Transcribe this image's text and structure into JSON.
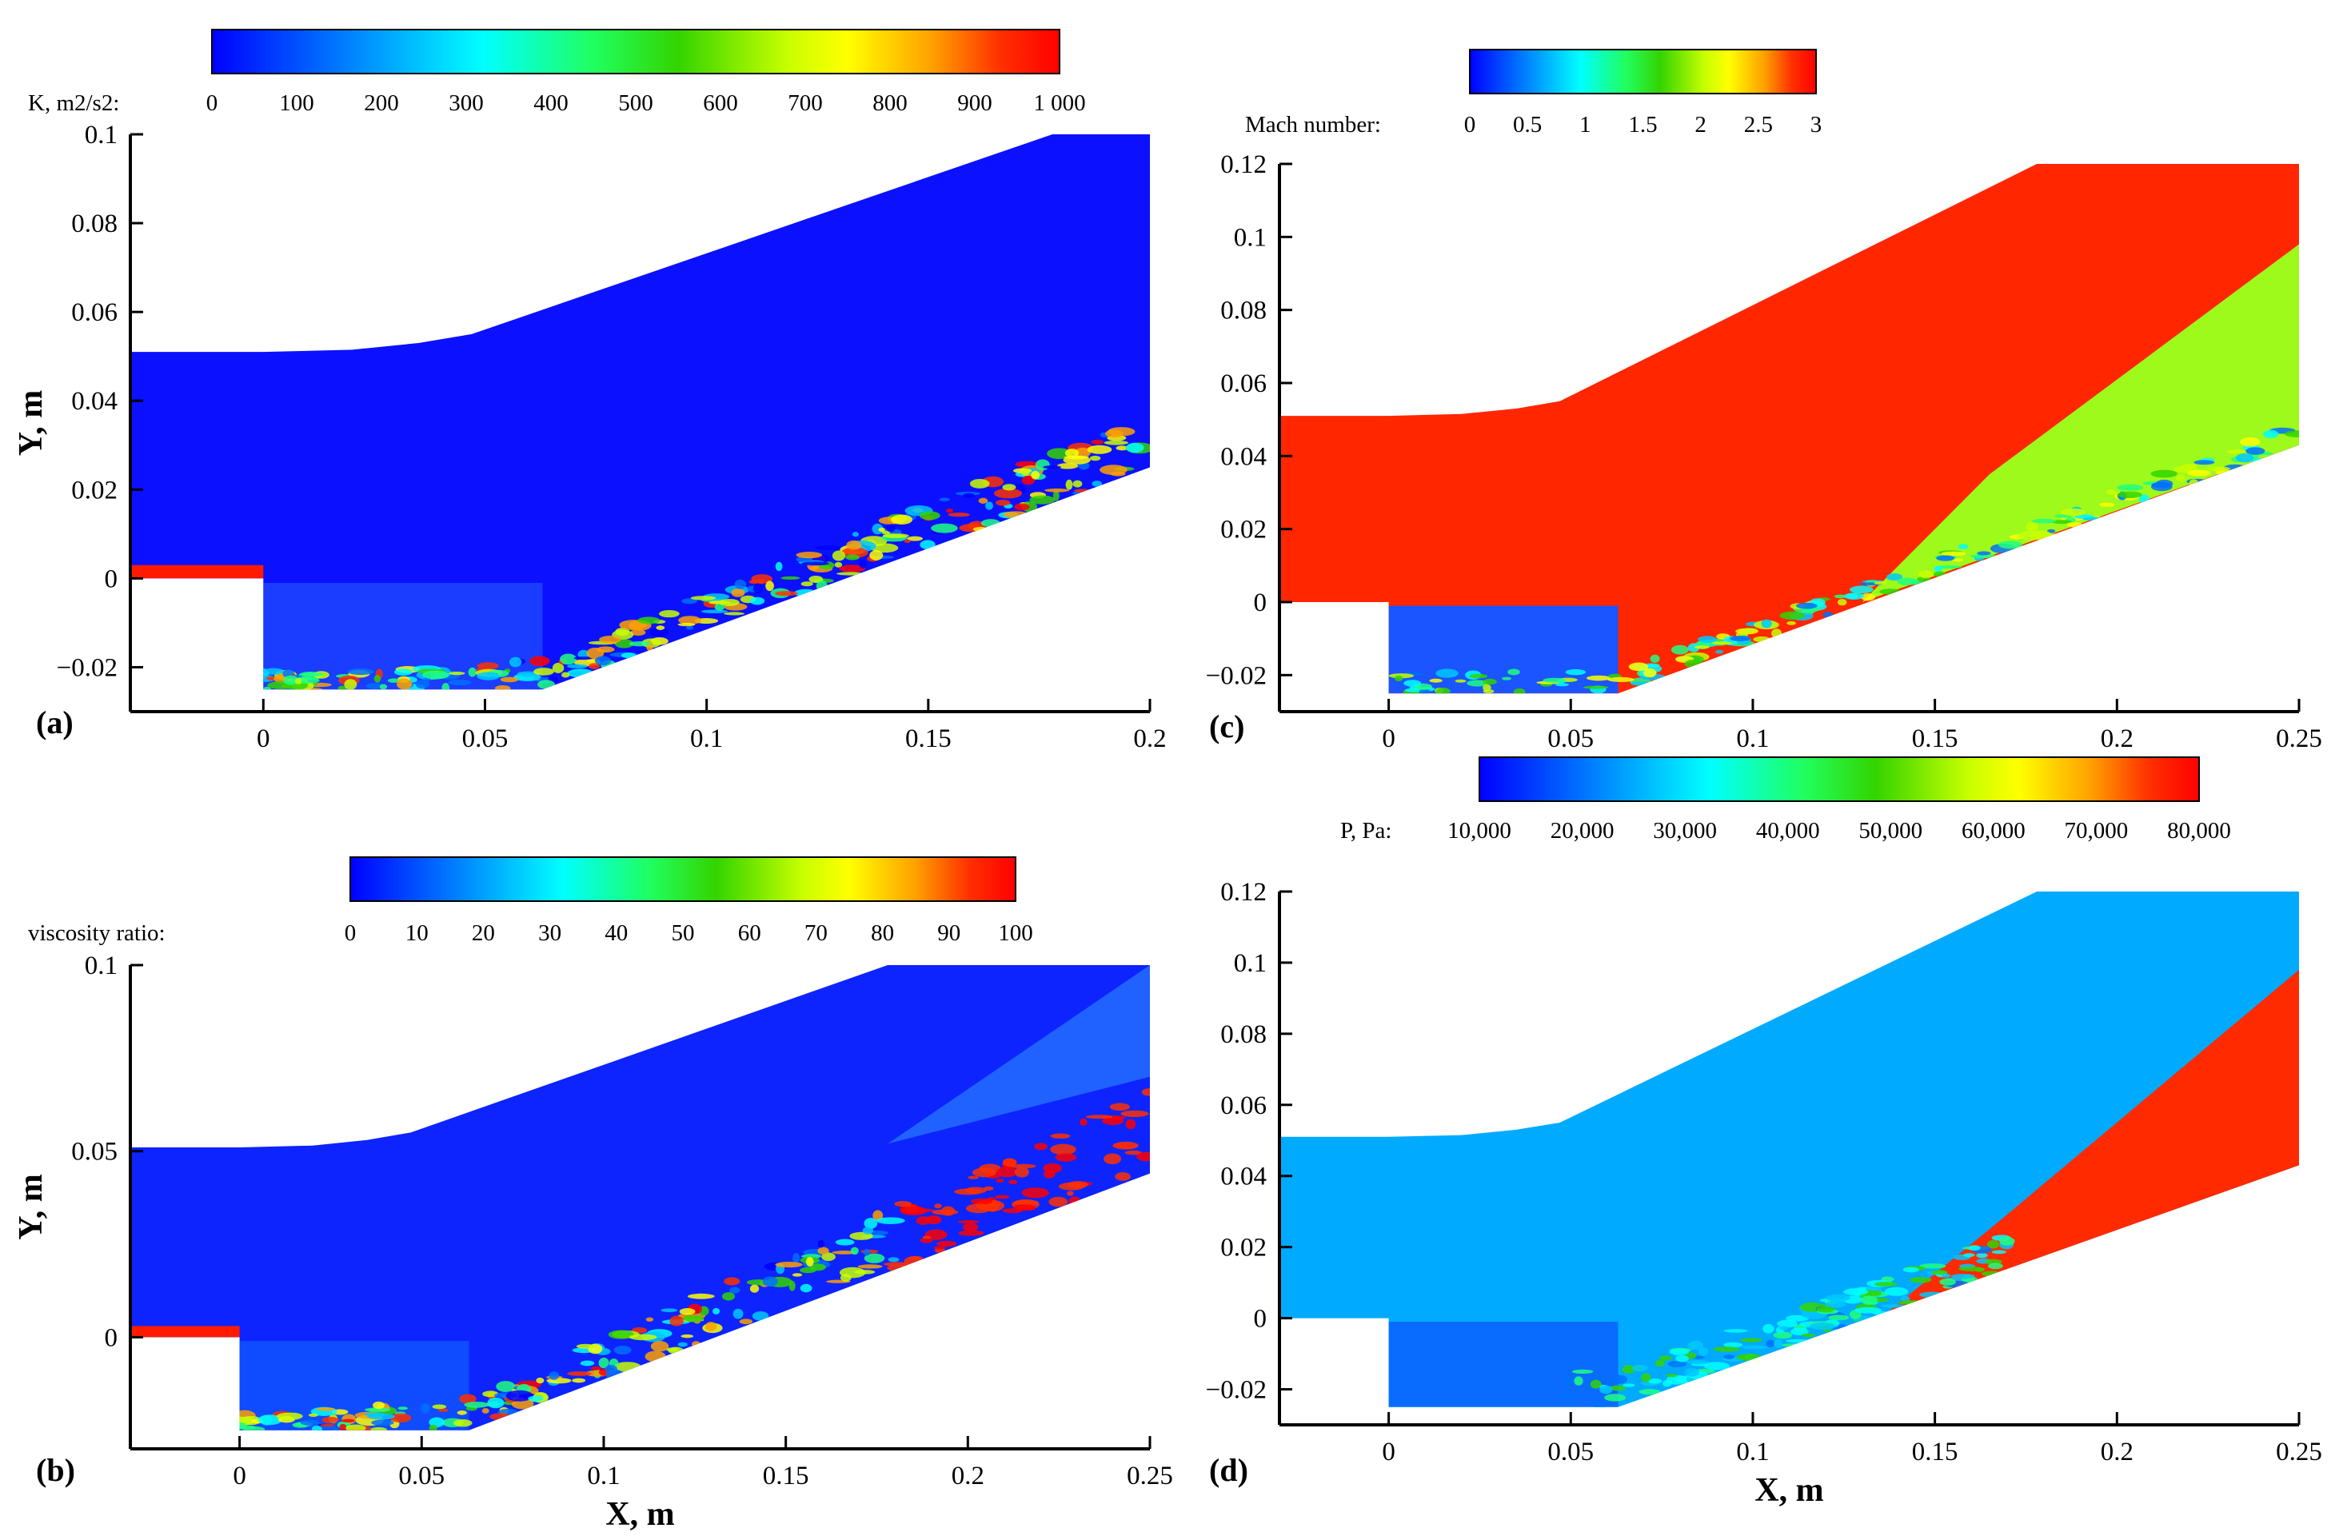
{
  "figure": {
    "description_free": true,
    "colors": {
      "jet": [
        "#0000ff",
        "#0070ff",
        "#00c8ff",
        "#00ffff",
        "#20ff80",
        "#33d400",
        "#c8ff00",
        "#ffff00",
        "#ffa000",
        "#ff3000",
        "#ff0000"
      ],
      "freestream_mach": "#ff2600",
      "freestream_pressure": "#00aaff",
      "background_k": "#0b11ff",
      "background_nu": "#0d24ff",
      "axis": "#000000"
    }
  },
  "axis_titles": {
    "y": "Y, m",
    "x": "X, m"
  },
  "chart_data": [
    {
      "id": "a",
      "type": "heatmap",
      "panel_label": "(a)",
      "title": "",
      "field": "K",
      "colorbar": {
        "label": "K, m2/s2:",
        "min": 0,
        "max": 1000,
        "ticks": [
          "0",
          "100",
          "200",
          "300",
          "400",
          "500",
          "600",
          "700",
          "800",
          "900",
          "1 000"
        ]
      },
      "xlim": [
        -0.03,
        0.2
      ],
      "ylim": [
        -0.03,
        0.1
      ],
      "xticks": [
        "0",
        "0.05",
        "0.1",
        "0.15",
        "0.2"
      ],
      "xtick_values": [
        0,
        0.05,
        0.1,
        0.15,
        0.2
      ],
      "yticks": [
        "−0.02",
        "0",
        "0.02",
        "0.04",
        "0.06",
        "0.08",
        "0.1"
      ],
      "ytick_values": [
        -0.02,
        0,
        0.02,
        0.04,
        0.06,
        0.08,
        0.1
      ],
      "xlabel": "",
      "ylabel": "Y, m"
    },
    {
      "id": "b",
      "type": "heatmap",
      "panel_label": "(b)",
      "title": "",
      "field": "viscosity ratio",
      "colorbar": {
        "label": "viscosity ratio:",
        "min": 0,
        "max": 100,
        "ticks": [
          "0",
          "10",
          "20",
          "30",
          "40",
          "50",
          "60",
          "70",
          "80",
          "90",
          "100"
        ]
      },
      "xlim": [
        -0.03,
        0.25
      ],
      "ylim": [
        -0.03,
        0.1
      ],
      "xticks": [
        "0",
        "0.05",
        "0.1",
        "0.15",
        "0.2",
        "0.25"
      ],
      "xtick_values": [
        0,
        0.05,
        0.1,
        0.15,
        0.2,
        0.25
      ],
      "yticks": [
        "0",
        "0.05",
        "0.1"
      ],
      "ytick_values": [
        0,
        0.05,
        0.1
      ],
      "xlabel": "X, m",
      "ylabel": "Y, m"
    },
    {
      "id": "c",
      "type": "heatmap",
      "panel_label": "(c)",
      "title": "",
      "field": "Mach number",
      "colorbar": {
        "label": "Mach number:",
        "min": 0,
        "max": 3,
        "ticks": [
          "0",
          "0.5",
          "1",
          "1.5",
          "2",
          "2.5",
          "3"
        ]
      },
      "xlim": [
        -0.03,
        0.25
      ],
      "ylim": [
        -0.03,
        0.12
      ],
      "xticks": [
        "0",
        "0.05",
        "0.1",
        "0.15",
        "0.2",
        "0.25"
      ],
      "xtick_values": [
        0,
        0.05,
        0.1,
        0.15,
        0.2,
        0.25
      ],
      "yticks": [
        "−0.02",
        "0",
        "0.02",
        "0.04",
        "0.06",
        "0.08",
        "0.1",
        "0.12"
      ],
      "ytick_values": [
        -0.02,
        0,
        0.02,
        0.04,
        0.06,
        0.08,
        0.1,
        0.12
      ],
      "xlabel": "",
      "ylabel": ""
    },
    {
      "id": "d",
      "type": "heatmap",
      "panel_label": "(d)",
      "title": "",
      "field": "P",
      "colorbar": {
        "label": "P, Pa:",
        "min": 10000,
        "max": 80000,
        "ticks": [
          "10,000",
          "20,000",
          "30,000",
          "40,000",
          "50,000",
          "60,000",
          "70,000",
          "80,000"
        ]
      },
      "xlim": [
        -0.03,
        0.25
      ],
      "ylim": [
        -0.03,
        0.12
      ],
      "xticks": [
        "0",
        "0.05",
        "0.1",
        "0.15",
        "0.2",
        "0.25"
      ],
      "xtick_values": [
        0,
        0.05,
        0.1,
        0.15,
        0.2,
        0.25
      ],
      "yticks": [
        "−0.02",
        "0",
        "0.02",
        "0.04",
        "0.06",
        "0.08",
        "0.1",
        "0.12"
      ],
      "ytick_values": [
        -0.02,
        0,
        0.02,
        0.04,
        0.06,
        0.08,
        0.1,
        0.12
      ],
      "xlabel": "X, m",
      "ylabel": ""
    }
  ]
}
